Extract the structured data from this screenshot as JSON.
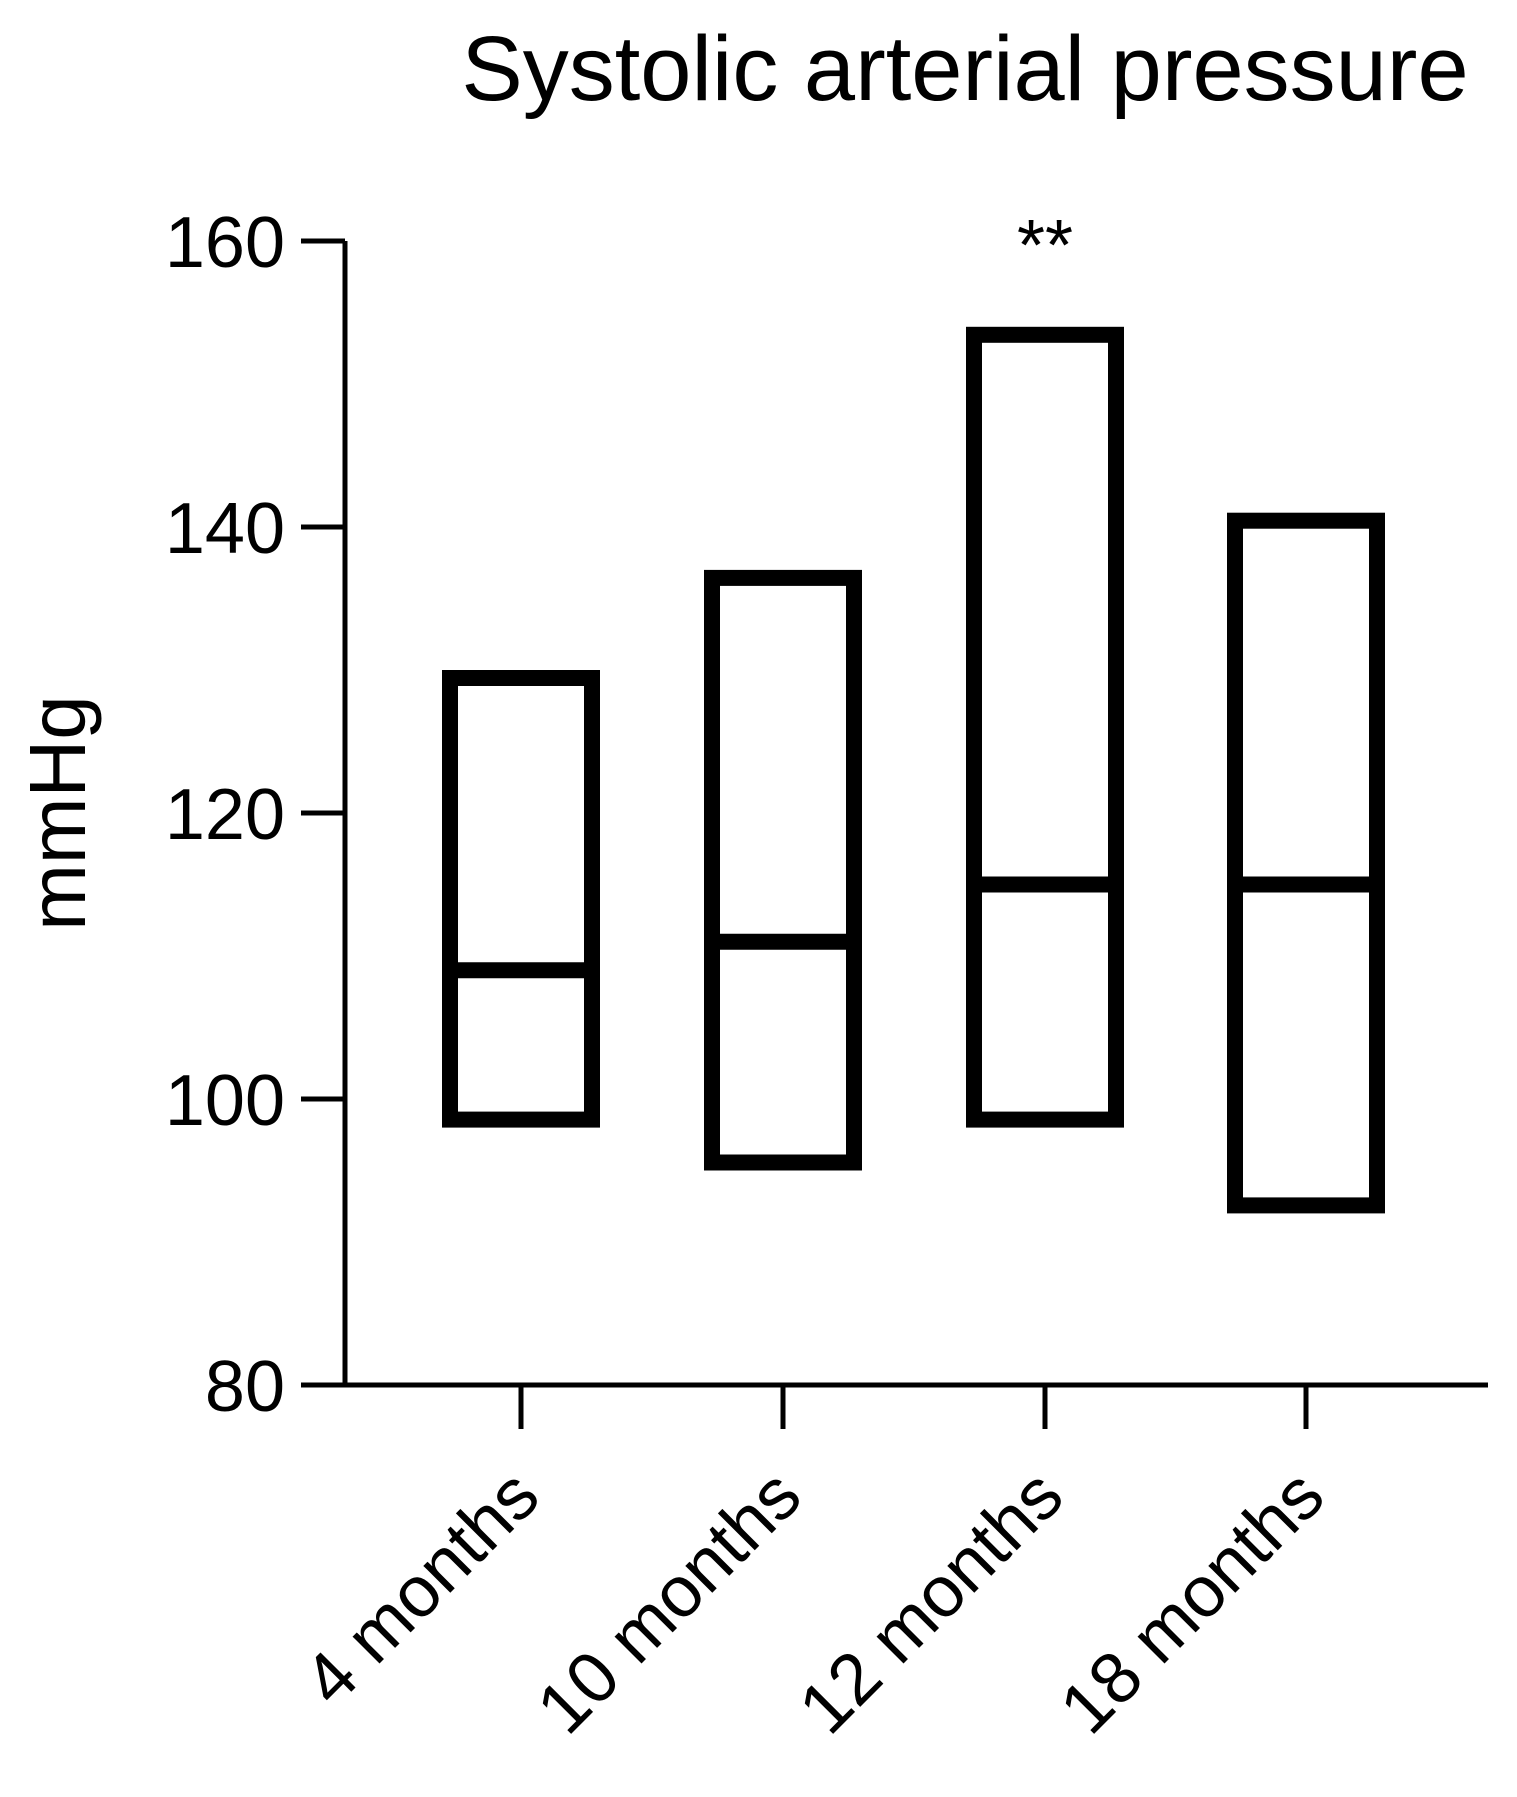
{
  "chart_data": {
    "type": "box",
    "title": "Systolic arterial pressure",
    "ylabel": "mmHg",
    "xlabel": "",
    "ylim": [
      80,
      160
    ],
    "yticks": [
      80,
      100,
      120,
      140,
      160
    ],
    "categories": [
      "4 months",
      "10 months",
      "12 months",
      "18 months"
    ],
    "boxes": [
      {
        "category": "4 months",
        "min": 98,
        "median": 109,
        "max": 130
      },
      {
        "category": "10 months",
        "min": 95,
        "median": 111,
        "max": 137
      },
      {
        "category": "12 months",
        "min": 98,
        "median": 115,
        "max": 154
      },
      {
        "category": "18 months",
        "min": 92,
        "median": 115,
        "max": 141
      }
    ],
    "annotations": [
      {
        "category": "12 months",
        "text": "**"
      }
    ],
    "grid": false,
    "legend": "none",
    "colors": {
      "stroke": "#000000",
      "fill": "#ffffff"
    }
  }
}
